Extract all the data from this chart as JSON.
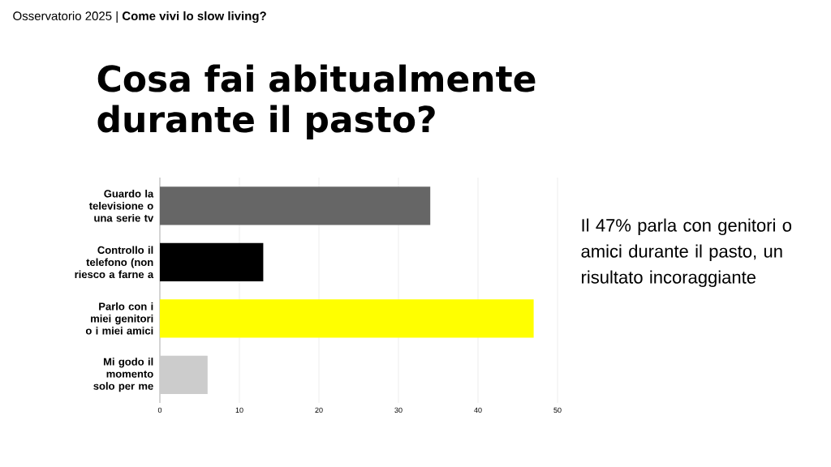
{
  "chart_data": {
    "type": "bar",
    "orientation": "horizontal",
    "subtitle": "Osservatorio 2025 | **Come vivi lo slow living?**",
    "title": "Cosa fai abitualmente durante il pasto?",
    "categories": [
      "Guardo la televisione o una serie tv",
      "Controllo il telefono (non riesco a farne a",
      "Parlo con i miei genitori o i miei amici",
      "Mi godo il momento solo per me"
    ],
    "values": [
      34,
      13,
      47,
      6
    ],
    "colors": [
      "#666666",
      "#000000",
      "#ffff00",
      "#cccccc"
    ],
    "xlim": [
      0,
      50
    ],
    "xticks": [
      0,
      10,
      20,
      30,
      40,
      50
    ],
    "grid": "x",
    "annotations": [
      "Il 47% parla con genitori o amici durante il pasto, un risultato incoraggiante"
    ]
  }
}
